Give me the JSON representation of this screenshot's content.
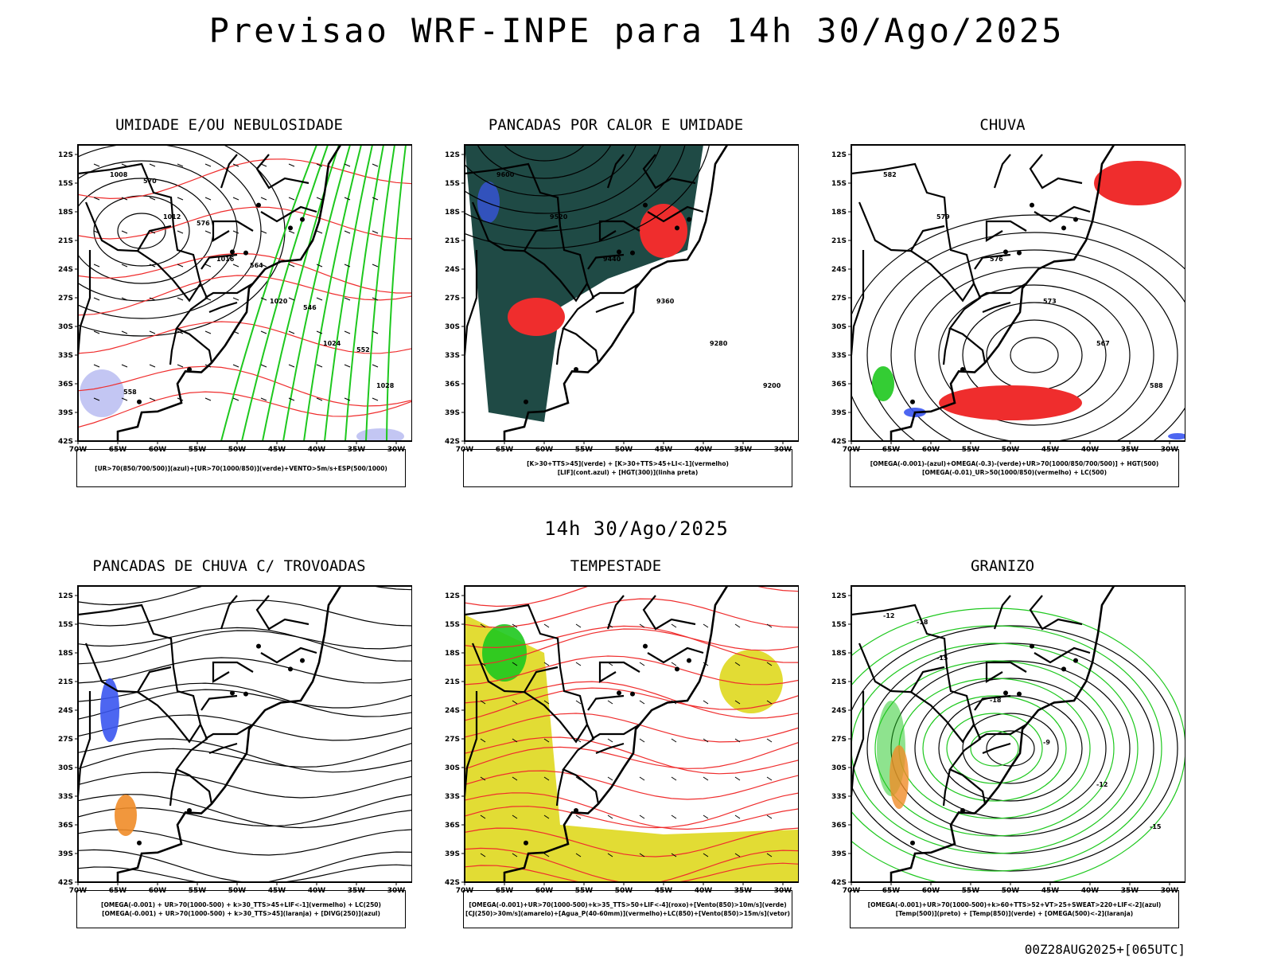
{
  "header": {
    "title": "Previsao WRF-INPE  para 14h 30/Ago/2025"
  },
  "mid_title": "14h 30/Ago/2025",
  "footer": {
    "stamp": "00Z28AUG2025+[065UTC]"
  },
  "axes": {
    "lat_labels": [
      "12S",
      "15S",
      "18S",
      "21S",
      "24S",
      "27S",
      "30S",
      "33S",
      "36S",
      "39S",
      "42S"
    ],
    "lon_labels": [
      "70W",
      "65W",
      "60W",
      "55W",
      "50W",
      "45W",
      "40W",
      "35W",
      "30W"
    ]
  },
  "colors": {
    "red": "#ef2d2d",
    "green": "#1ec81e",
    "blue": "#3a55f0",
    "darkgreen": "#1f4a45",
    "yellow": "#e2dc34",
    "orange": "#f08c28",
    "lavender": "#b4b8f0"
  },
  "panels": [
    {
      "id": "umidade",
      "title": "UMIDADE E/OU NEBULOSIDADE",
      "legend": [
        "[UR>70(850/700/500)](azul)+[UR>70(1000/850)](verde)+VENTO>5m/s+ESP(500/1000)"
      ],
      "contour_labels": [
        "1008",
        "1012",
        "1016",
        "1020",
        "1024",
        "1028",
        "570",
        "576",
        "564",
        "546",
        "552",
        "558"
      ]
    },
    {
      "id": "pancadas",
      "title": "PANCADAS POR CALOR E UMIDADE",
      "legend": [
        "[K>30+TTS>45](verde) + [K>30+TTS>45+LI<-1](vermelho)",
        "[LIF](cont.azul) + [HGT(300)](linha preta)"
      ],
      "contour_labels": [
        "9600",
        "9520",
        "9440",
        "9360",
        "9280",
        "9200"
      ]
    },
    {
      "id": "chuva",
      "title": "CHUVA",
      "legend": [
        "[OMEGA(-0.001)-(azul)+OMEGA(-0.3)-(verde)+UR>70(1000/850/700/500)] + HGT(500)",
        "[OMEGA(-0.01)_UR>50(1000/850)(vermelho) + LC(500)"
      ],
      "contour_labels": [
        "582",
        "579",
        "576",
        "573",
        "567",
        "588"
      ]
    },
    {
      "id": "trovoadas",
      "title": "PANCADAS DE CHUVA C/ TROVOADAS",
      "legend": [
        "[OMEGA(-0.001) + UR>70(1000-500) + k>30_TTS>45+LIF<-1](vermelho) + LC(250)",
        "[OMEGA(-0.001) + UR>70(1000-500) + k>30_TTS>45](laranja) + [DIVG(250)](azul)"
      ],
      "contour_labels": []
    },
    {
      "id": "tempestade",
      "title": "TEMPESTADE",
      "legend": [
        "[OMEGA(-0.001)+UR>70(1000-500)+k>35_TTS>50+LIF<-4](roxo)+[Vento(850)>10m/s](verde)",
        "[CJ(250)>30m/s](amarelo)+[Agua_P(40-60mm)](vermelho)+LC(850)+[Vento(850)>15m/s](vetor)"
      ],
      "contour_labels": []
    },
    {
      "id": "granizo",
      "title": "GRANIZO",
      "legend": [
        "[OMEGA(-0.001)+UR>70(1000-500)+k>60+TTS>52+VT>25+SWEAT>220+LIF<-2](azul)",
        "[Temp(500)](preto) + [Temp(850)](verde) + [OMEGA(500)<-2](laranja)"
      ],
      "contour_labels": [
        "-12",
        "-15",
        "-18",
        "-9",
        "-12",
        "-15",
        "-18"
      ]
    }
  ]
}
